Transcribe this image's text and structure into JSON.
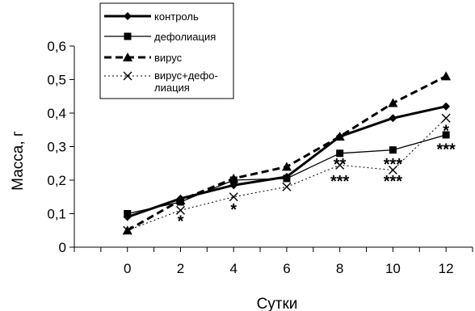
{
  "chart_data": {
    "type": "line",
    "xlabel": "Сутки",
    "ylabel": "Масса, г",
    "x": [
      0,
      2,
      4,
      6,
      8,
      10,
      12
    ],
    "x_tick_labels": [
      "0",
      "2",
      "4",
      "6",
      "8",
      "10",
      "12"
    ],
    "y_tick_labels": [
      "0",
      "0,1",
      "0,2",
      "0,3",
      "0,4",
      "0,5",
      "0,6"
    ],
    "ylim": [
      0,
      0.6
    ],
    "grid": false,
    "legend_position": "top-left",
    "legend": {
      "line1": [
        "контроль"
      ],
      "line2": [
        "дефолиация"
      ],
      "line3": [
        "вирус"
      ],
      "line4": [
        "вирус+дефо-",
        "лиация"
      ]
    },
    "series": [
      {
        "name": "контроль",
        "values": [
          0.09,
          0.145,
          0.185,
          0.21,
          0.33,
          0.385,
          0.42
        ],
        "line_style": "solid-thick",
        "marker": "diamond",
        "color": "#000000"
      },
      {
        "name": "дефолиация",
        "values": [
          0.1,
          0.135,
          0.2,
          0.205,
          0.28,
          0.29,
          0.335
        ],
        "line_style": "solid-thin",
        "marker": "square",
        "color": "#000000"
      },
      {
        "name": "вирус",
        "values": [
          0.05,
          0.14,
          0.205,
          0.24,
          0.33,
          0.43,
          0.51
        ],
        "line_style": "dashed-thick",
        "marker": "triangle",
        "color": "#000000"
      },
      {
        "name": "вирус+дефолиация",
        "values": [
          0.05,
          0.11,
          0.15,
          0.18,
          0.245,
          0.23,
          0.385
        ],
        "line_style": "dotted-thin",
        "marker": "x",
        "color": "#000000"
      }
    ],
    "annotations": [
      {
        "text": "*",
        "x": 2,
        "y": 0.085
      },
      {
        "text": "*",
        "x": 4,
        "y": 0.12
      },
      {
        "text": "**",
        "x": 8,
        "y": 0.255
      },
      {
        "text": "***",
        "x": 8,
        "y": 0.205
      },
      {
        "text": "***",
        "x": 10,
        "y": 0.255
      },
      {
        "text": "***",
        "x": 10,
        "y": 0.205
      },
      {
        "text": "*",
        "x": 12,
        "y": 0.355
      },
      {
        "text": "***",
        "x": 12,
        "y": 0.3
      }
    ]
  }
}
